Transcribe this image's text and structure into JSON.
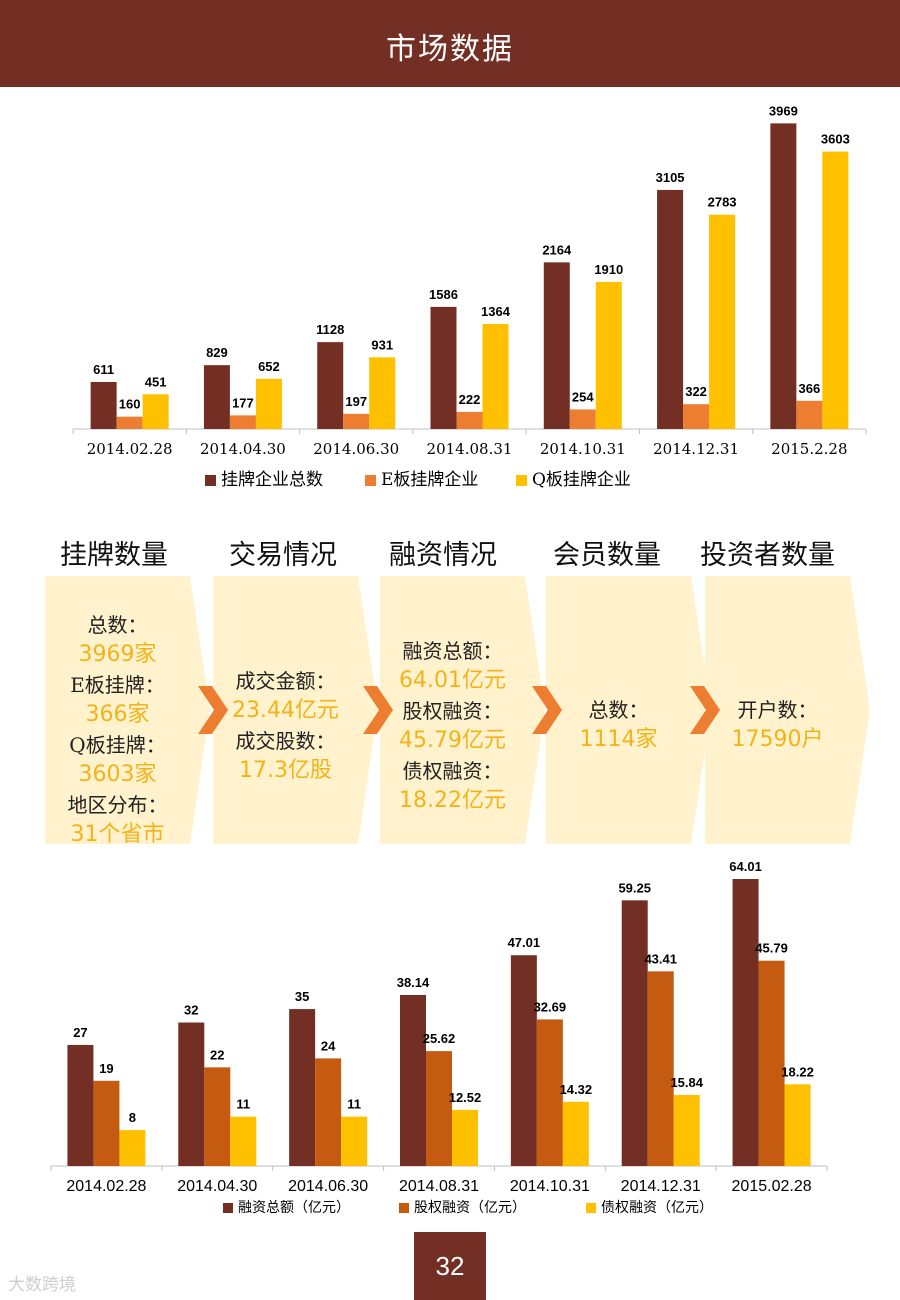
{
  "header": {
    "title": "市场数据"
  },
  "colors": {
    "header_bg": "#742F25",
    "dark_red": "#742F25",
    "orange": "#ED7D31",
    "gold": "#FFC000",
    "rust": "#C55A11",
    "panel_bg": "#FFF2CC",
    "value_text": "#F3B318",
    "arrow": "#ED7D31"
  },
  "chart_data": [
    {
      "type": "bar",
      "categories": [
        "2014.02.28",
        "2014.04.30",
        "2014.06.30",
        "2014.08.31",
        "2014.10.31",
        "2014.12.31",
        "2015.2.28"
      ],
      "series": [
        {
          "name": "挂牌企业总数",
          "values": [
            611,
            829,
            1128,
            1586,
            2164,
            3105,
            3969
          ]
        },
        {
          "name": "E板挂牌企业",
          "values": [
            160,
            177,
            197,
            222,
            254,
            322,
            366
          ]
        },
        {
          "name": "Q板挂牌企业",
          "values": [
            451,
            652,
            931,
            1364,
            1910,
            2783,
            3603
          ]
        }
      ],
      "legend": "bottom",
      "grid": false
    },
    {
      "type": "bar",
      "categories": [
        "2014.02.28",
        "2014.04.30",
        "2014.06.30",
        "2014.08.31",
        "2014.10.31",
        "2014.12.31",
        "2015.02.28"
      ],
      "series": [
        {
          "name": "融资总额（亿元）",
          "values": [
            27,
            32,
            35,
            38.14,
            47.01,
            59.25,
            64.01
          ]
        },
        {
          "name": "股权融资（亿元）",
          "values": [
            19,
            22,
            24,
            25.62,
            32.69,
            43.41,
            45.79
          ]
        },
        {
          "name": "债权融资（亿元）",
          "values": [
            8,
            11,
            11,
            12.52,
            14.32,
            15.84,
            18.22
          ]
        }
      ],
      "legend": "bottom",
      "grid": false
    }
  ],
  "panels": [
    {
      "title": "挂牌数量",
      "lines": [
        {
          "label": "总数：",
          "value": "3969家"
        },
        {
          "label": "E板挂牌：",
          "value": "366家"
        },
        {
          "label": "Q板挂牌：",
          "value": "3603家"
        },
        {
          "label": "地区分布：",
          "value": "31个省市"
        }
      ]
    },
    {
      "title": "交易情况",
      "lines": [
        {
          "label": "成交金额：",
          "value": "23.44亿元"
        },
        {
          "label": "成交股数：",
          "value": "17.3亿股"
        }
      ]
    },
    {
      "title": "融资情况",
      "lines": [
        {
          "label": "融资总额：",
          "value": "64.01亿元"
        },
        {
          "label": "股权融资：",
          "value": "45.79亿元"
        },
        {
          "label": "债权融资：",
          "value": "18.22亿元"
        }
      ]
    },
    {
      "title": "会员数量",
      "lines": [
        {
          "label": "总数：",
          "value": "1114家"
        }
      ]
    },
    {
      "title": "投资者数量",
      "lines": [
        {
          "label": "开户数：",
          "value": "17590户"
        }
      ]
    }
  ],
  "page": {
    "number": "32"
  },
  "watermark": {
    "text": "大数跨境"
  }
}
